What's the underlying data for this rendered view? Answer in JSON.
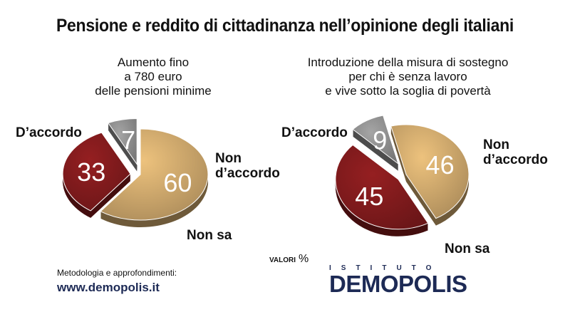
{
  "title": "Pensione e reddito di cittadinanza nell’opinione degli italiani",
  "chart_data": [
    {
      "type": "pie",
      "title": "Aumento fino a 780 euro delle pensioni minime",
      "title_lines": [
        "Aumento fino",
        "a 780 euro",
        "delle pensioni minime"
      ],
      "slices": [
        {
          "label": "D’accordo",
          "value": 60,
          "color": "#c9a46a"
        },
        {
          "label": "Non d’accordo",
          "value": 33,
          "color": "#7e1a1c"
        },
        {
          "label": "Non sa",
          "value": 7,
          "color": "#8c8c8c"
        }
      ]
    },
    {
      "type": "pie",
      "title": "Introduzione della misura di sostegno per chi è senza lavoro e vive sotto la soglia di povertà",
      "title_lines": [
        "Introduzione della misura di sostegno",
        "per chi è senza lavoro",
        "e vive sotto la soglia di povertà"
      ],
      "slices": [
        {
          "label": "D’accordo",
          "value": 46,
          "color": "#c9a46a"
        },
        {
          "label": "Non d’accordo",
          "value": 45,
          "color": "#7e1a1c"
        },
        {
          "label": "Non sa",
          "value": 9,
          "color": "#8c8c8c"
        }
      ]
    }
  ],
  "labels": {
    "left": {
      "agree": "D’accordo",
      "disagree_1": "Non",
      "disagree_2": "d’accordo",
      "dontknow": "Non sa"
    },
    "right": {
      "agree": "D’accordo",
      "disagree_1": "Non",
      "disagree_2": "d’accordo",
      "dontknow": "Non sa"
    }
  },
  "valori": {
    "text": "VALORI",
    "unit": "%"
  },
  "footer": {
    "method": "Metodologia e approfondimenti:",
    "website": "www.demopolis.it",
    "institute": "ISTITUTO",
    "brand": "DEMOPOLIS"
  }
}
